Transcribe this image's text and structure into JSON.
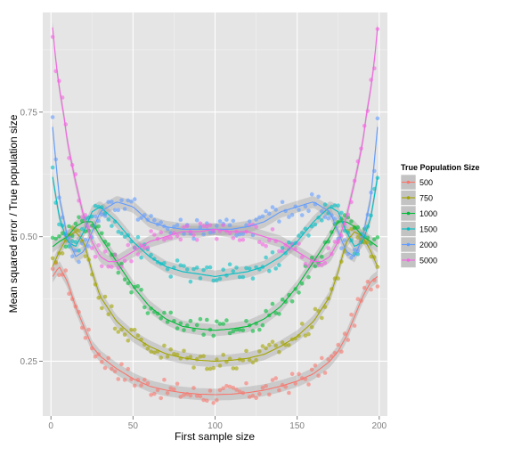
{
  "chart_data": {
    "type": "scatter",
    "xlabel": "First sample size",
    "ylabel": "Mean squared error / True population size",
    "xlim": [
      -5,
      205
    ],
    "ylim": [
      0.14,
      0.95
    ],
    "x_ticks": [
      0,
      50,
      100,
      150,
      200
    ],
    "y_ticks": [
      0.25,
      0.5,
      0.75
    ],
    "x_tick_labels": [
      "0",
      "50",
      "100",
      "150",
      "200"
    ],
    "y_tick_labels": [
      "0.25",
      "0.50",
      "0.75"
    ],
    "grid": true,
    "smoothed_trend_with_band": true,
    "legend": {
      "title": "True Population Size",
      "placement": "right"
    },
    "series": [
      {
        "name": "500",
        "color": "#f8766d",
        "x": [
          1,
          5,
          10,
          15,
          20,
          25,
          30,
          40,
          50,
          60,
          70,
          80,
          90,
          100,
          110,
          120,
          130,
          140,
          150,
          160,
          170,
          175,
          180,
          185,
          190,
          195,
          199
        ],
        "y": [
          0.42,
          0.44,
          0.41,
          0.36,
          0.32,
          0.28,
          0.26,
          0.235,
          0.215,
          0.2,
          0.192,
          0.187,
          0.184,
          0.183,
          0.184,
          0.187,
          0.192,
          0.2,
          0.21,
          0.225,
          0.25,
          0.27,
          0.3,
          0.34,
          0.38,
          0.41,
          0.42
        ]
      },
      {
        "name": "750",
        "color": "#a3a500",
        "x": [
          1,
          5,
          10,
          15,
          20,
          25,
          30,
          40,
          50,
          60,
          70,
          80,
          90,
          100,
          110,
          120,
          130,
          140,
          150,
          160,
          170,
          175,
          180,
          185,
          190,
          195,
          199
        ],
        "y": [
          0.44,
          0.47,
          0.5,
          0.51,
          0.49,
          0.43,
          0.38,
          0.33,
          0.3,
          0.28,
          0.265,
          0.257,
          0.252,
          0.25,
          0.252,
          0.256,
          0.264,
          0.28,
          0.3,
          0.33,
          0.38,
          0.43,
          0.49,
          0.51,
          0.5,
          0.47,
          0.44
        ]
      },
      {
        "name": "1000",
        "color": "#00ba38",
        "x": [
          1,
          5,
          10,
          15,
          20,
          25,
          30,
          40,
          50,
          60,
          70,
          80,
          90,
          100,
          110,
          120,
          130,
          140,
          150,
          160,
          170,
          175,
          180,
          185,
          190,
          195,
          199
        ],
        "y": [
          0.48,
          0.49,
          0.5,
          0.52,
          0.53,
          0.53,
          0.5,
          0.45,
          0.4,
          0.36,
          0.335,
          0.32,
          0.315,
          0.312,
          0.315,
          0.32,
          0.335,
          0.36,
          0.4,
          0.45,
          0.5,
          0.53,
          0.53,
          0.52,
          0.5,
          0.49,
          0.48
        ]
      },
      {
        "name": "1500",
        "color": "#00bfc4",
        "x": [
          1,
          5,
          10,
          15,
          20,
          25,
          30,
          40,
          50,
          60,
          70,
          80,
          90,
          100,
          110,
          120,
          130,
          140,
          150,
          160,
          170,
          175,
          180,
          185,
          190,
          195,
          199
        ],
        "y": [
          0.62,
          0.54,
          0.49,
          0.48,
          0.51,
          0.55,
          0.56,
          0.53,
          0.49,
          0.46,
          0.44,
          0.43,
          0.425,
          0.42,
          0.425,
          0.43,
          0.44,
          0.46,
          0.49,
          0.53,
          0.56,
          0.55,
          0.51,
          0.48,
          0.49,
          0.54,
          0.62
        ]
      },
      {
        "name": "2000",
        "color": "#619cff",
        "x": [
          1,
          5,
          10,
          15,
          20,
          25,
          30,
          40,
          50,
          60,
          70,
          80,
          90,
          100,
          110,
          120,
          130,
          140,
          150,
          160,
          170,
          175,
          180,
          185,
          190,
          195,
          199
        ],
        "y": [
          0.72,
          0.58,
          0.5,
          0.46,
          0.47,
          0.51,
          0.55,
          0.57,
          0.56,
          0.53,
          0.52,
          0.515,
          0.515,
          0.515,
          0.515,
          0.52,
          0.53,
          0.55,
          0.56,
          0.57,
          0.55,
          0.51,
          0.47,
          0.46,
          0.5,
          0.58,
          0.72
        ]
      },
      {
        "name": "5000",
        "color": "#f564e3",
        "x": [
          1,
          3,
          5,
          8,
          10,
          15,
          20,
          25,
          30,
          35,
          40,
          50,
          60,
          70,
          80,
          90,
          100,
          110,
          120,
          130,
          140,
          150,
          160,
          165,
          170,
          175,
          180,
          185,
          190,
          192,
          195,
          197,
          199
        ],
        "y": [
          0.92,
          0.85,
          0.8,
          0.74,
          0.69,
          0.61,
          0.54,
          0.49,
          0.46,
          0.45,
          0.45,
          0.47,
          0.49,
          0.5,
          0.51,
          0.51,
          0.515,
          0.51,
          0.51,
          0.5,
          0.49,
          0.47,
          0.45,
          0.45,
          0.46,
          0.49,
          0.54,
          0.61,
          0.69,
          0.74,
          0.8,
          0.85,
          0.92
        ]
      }
    ]
  }
}
